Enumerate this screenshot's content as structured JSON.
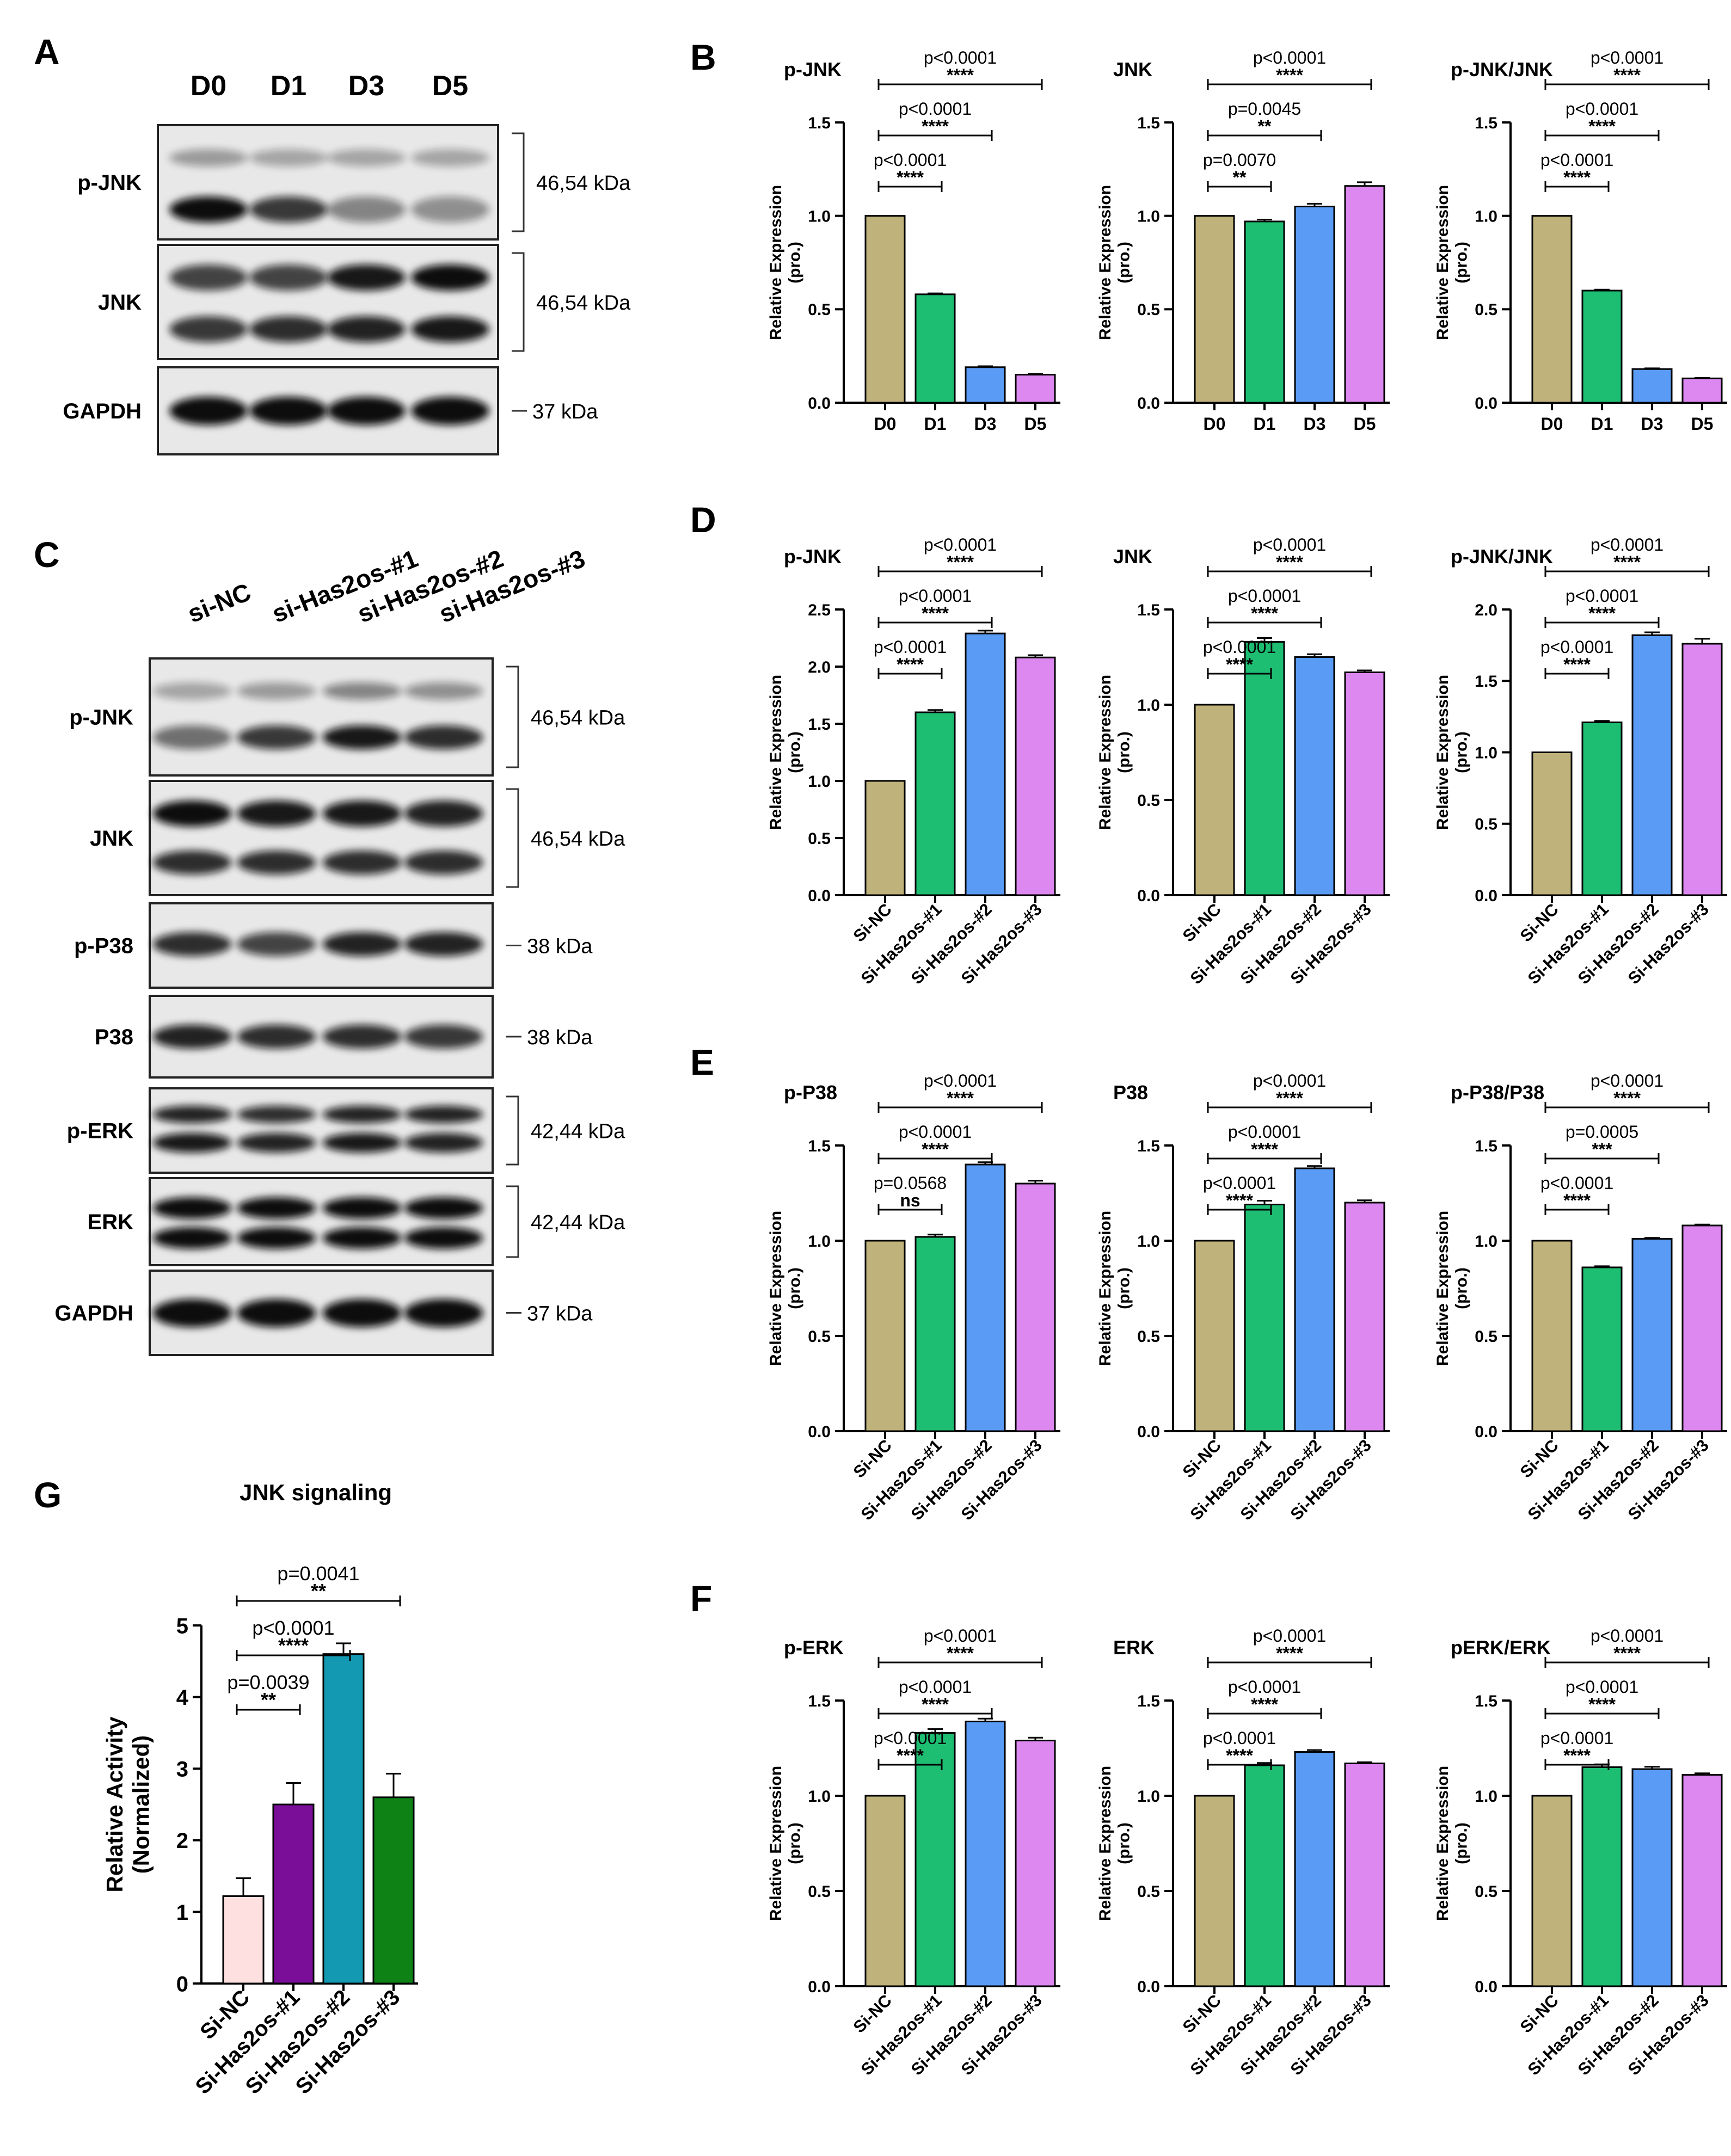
{
  "colors": {
    "d0": "#BFB27A",
    "d1": "#1EBE72",
    "d3": "#5A9BF5",
    "d5": "#DD88F0",
    "g_nc": "#FFE0E0",
    "g_1": "#7A0E98",
    "g_2": "#1499B2",
    "g_3": "#0E8214"
  },
  "panel_letters": {
    "a": "A",
    "b": "B",
    "c": "C",
    "d": "D",
    "e": "E",
    "f": "F",
    "g": "G"
  },
  "blot_a": {
    "lanes": [
      "D0",
      "D1",
      "D3",
      "D5"
    ],
    "rows": [
      {
        "label": "p-JNK",
        "size": "46,54 kDa"
      },
      {
        "label": "JNK",
        "size": "46,54 kDa"
      },
      {
        "label": "GAPDH",
        "size": "37 kDa"
      }
    ]
  },
  "blot_c": {
    "lanes": [
      "si-NC",
      "si-Has2os-#1",
      "si-Has2os-#2",
      "si-Has2os-#3"
    ],
    "rows": [
      {
        "label": "p-JNK",
        "size": "46,54 kDa"
      },
      {
        "label": "JNK",
        "size": "46,54 kDa"
      },
      {
        "label": "p-P38",
        "size": "38 kDa"
      },
      {
        "label": "P38",
        "size": "38 kDa"
      },
      {
        "label": "p-ERK",
        "size": "42,44 kDa"
      },
      {
        "label": "ERK",
        "size": "42,44 kDa"
      },
      {
        "label": "GAPDH",
        "size": "37 kDa"
      }
    ]
  },
  "chart_data": [
    {
      "panel": "B",
      "type": "bar",
      "title": "p-JNK",
      "ylabel": "Relative Expression\n(pro.)",
      "ylim": [
        0,
        1.5
      ],
      "yticks": [
        0,
        0.5,
        1.0,
        1.5
      ],
      "categories": [
        "D0",
        "D1",
        "D3",
        "D5"
      ],
      "values": [
        1.0,
        0.58,
        0.19,
        0.15
      ],
      "errors": [
        0,
        0.005,
        0.005,
        0.004
      ],
      "comparisons": [
        {
          "to": 1,
          "p": "p<0.0001",
          "stars": "****"
        },
        {
          "to": 2,
          "p": "p<0.0001",
          "stars": "****"
        },
        {
          "to": 3,
          "p": "p<0.0001",
          "stars": "****"
        }
      ]
    },
    {
      "panel": "B",
      "type": "bar",
      "title": "JNK",
      "ylabel": "Relative Expression\n(pro.)",
      "ylim": [
        0,
        1.5
      ],
      "yticks": [
        0,
        0.5,
        1.0,
        1.5
      ],
      "categories": [
        "D0",
        "D1",
        "D3",
        "D5"
      ],
      "values": [
        1.0,
        0.97,
        1.05,
        1.16
      ],
      "errors": [
        0,
        0.01,
        0.015,
        0.02
      ],
      "comparisons": [
        {
          "to": 1,
          "p": "p=0.0070",
          "stars": "**"
        },
        {
          "to": 2,
          "p": "p=0.0045",
          "stars": "**"
        },
        {
          "to": 3,
          "p": "p<0.0001",
          "stars": "****"
        }
      ]
    },
    {
      "panel": "B",
      "type": "bar",
      "title": "p-JNK/JNK",
      "ylabel": "Relative Expression\n(pro.)",
      "ylim": [
        0,
        1.5
      ],
      "yticks": [
        0,
        0.5,
        1.0,
        1.5
      ],
      "categories": [
        "D0",
        "D1",
        "D3",
        "D5"
      ],
      "values": [
        1.0,
        0.6,
        0.18,
        0.13
      ],
      "errors": [
        0,
        0.005,
        0.004,
        0.003
      ],
      "comparisons": [
        {
          "to": 1,
          "p": "p<0.0001",
          "stars": "****"
        },
        {
          "to": 2,
          "p": "p<0.0001",
          "stars": "****"
        },
        {
          "to": 3,
          "p": "p<0.0001",
          "stars": "****"
        }
      ]
    },
    {
      "panel": "D",
      "type": "bar",
      "title": "p-JNK",
      "ylabel": "Relative Expression\n(pro.)",
      "ylim": [
        0,
        2.5
      ],
      "yticks": [
        0,
        0.5,
        1.0,
        1.5,
        2.0,
        2.5
      ],
      "categories": [
        "Si-NC",
        "Si-Has2os-#1",
        "Si-Has2os-#2",
        "Si-Has2os-#3"
      ],
      "values": [
        1.0,
        1.6,
        2.29,
        2.08
      ],
      "errors": [
        0,
        0.02,
        0.025,
        0.02
      ],
      "comparisons": [
        {
          "to": 1,
          "p": "p<0.0001",
          "stars": "****"
        },
        {
          "to": 2,
          "p": "p<0.0001",
          "stars": "****"
        },
        {
          "to": 3,
          "p": "p<0.0001",
          "stars": "****"
        }
      ]
    },
    {
      "panel": "D",
      "type": "bar",
      "title": "JNK",
      "ylabel": "Relative Expression\n(pro.)",
      "ylim": [
        0,
        1.5
      ],
      "yticks": [
        0,
        0.5,
        1.0,
        1.5
      ],
      "categories": [
        "Si-NC",
        "Si-Has2os-#1",
        "Si-Has2os-#2",
        "Si-Has2os-#3"
      ],
      "values": [
        1.0,
        1.33,
        1.25,
        1.17
      ],
      "errors": [
        0,
        0.02,
        0.015,
        0.01
      ],
      "comparisons": [
        {
          "to": 1,
          "p": "p<0.0001",
          "stars": "****"
        },
        {
          "to": 2,
          "p": "p<0.0001",
          "stars": "****"
        },
        {
          "to": 3,
          "p": "p<0.0001",
          "stars": "****"
        }
      ]
    },
    {
      "panel": "D",
      "type": "bar",
      "title": "p-JNK/JNK",
      "ylabel": "Relative Expression\n(pro.)",
      "ylim": [
        0,
        2.0
      ],
      "yticks": [
        0,
        0.5,
        1.0,
        1.5,
        2.0
      ],
      "categories": [
        "Si-NC",
        "Si-Has2os-#1",
        "Si-Has2os-#2",
        "Si-Has2os-#3"
      ],
      "values": [
        1.0,
        1.21,
        1.82,
        1.76
      ],
      "errors": [
        0,
        0.01,
        0.02,
        0.035
      ],
      "comparisons": [
        {
          "to": 1,
          "p": "p<0.0001",
          "stars": "****"
        },
        {
          "to": 2,
          "p": "p<0.0001",
          "stars": "****"
        },
        {
          "to": 3,
          "p": "p<0.0001",
          "stars": "****"
        }
      ]
    },
    {
      "panel": "E",
      "type": "bar",
      "title": "p-P38",
      "ylabel": "Relative Expression\n(pro.)",
      "ylim": [
        0,
        1.5
      ],
      "yticks": [
        0,
        0.5,
        1.0,
        1.5
      ],
      "categories": [
        "Si-NC",
        "Si-Has2os-#1",
        "Si-Has2os-#2",
        "Si-Has2os-#3"
      ],
      "values": [
        1.0,
        1.02,
        1.4,
        1.3
      ],
      "errors": [
        0,
        0.012,
        0.012,
        0.015
      ],
      "comparisons": [
        {
          "to": 1,
          "p": "p=0.0568",
          "stars": "ns"
        },
        {
          "to": 2,
          "p": "p<0.0001",
          "stars": "****"
        },
        {
          "to": 3,
          "p": "p<0.0001",
          "stars": "****"
        }
      ]
    },
    {
      "panel": "E",
      "type": "bar",
      "title": "P38",
      "ylabel": "Relative Expression\n(pro.)",
      "ylim": [
        0,
        1.5
      ],
      "yticks": [
        0,
        0.5,
        1.0,
        1.5
      ],
      "categories": [
        "Si-NC",
        "Si-Has2os-#1",
        "Si-Has2os-#2",
        "Si-Has2os-#3"
      ],
      "values": [
        1.0,
        1.19,
        1.38,
        1.2
      ],
      "errors": [
        0,
        0.02,
        0.012,
        0.012
      ],
      "comparisons": [
        {
          "to": 1,
          "p": "p<0.0001",
          "stars": "****"
        },
        {
          "to": 2,
          "p": "p<0.0001",
          "stars": "****"
        },
        {
          "to": 3,
          "p": "p<0.0001",
          "stars": "****"
        }
      ]
    },
    {
      "panel": "E",
      "type": "bar",
      "title": "p-P38/P38",
      "ylabel": "Relative Expression\n(pro.)",
      "ylim": [
        0,
        1.5
      ],
      "yticks": [
        0,
        0.5,
        1.0,
        1.5
      ],
      "categories": [
        "Si-NC",
        "Si-Has2os-#1",
        "Si-Has2os-#2",
        "Si-Has2os-#3"
      ],
      "values": [
        1.0,
        0.86,
        1.01,
        1.08
      ],
      "errors": [
        0,
        0.006,
        0.005,
        0.005
      ],
      "comparisons": [
        {
          "to": 1,
          "p": "p<0.0001",
          "stars": "****"
        },
        {
          "to": 2,
          "p": "p=0.0005",
          "stars": "***"
        },
        {
          "to": 3,
          "p": "p<0.0001",
          "stars": "****"
        }
      ]
    },
    {
      "panel": "F",
      "type": "bar",
      "title": "p-ERK",
      "ylabel": "Relative Expression\n(pro.)",
      "ylim": [
        0,
        1.5
      ],
      "yticks": [
        0,
        0.5,
        1.0,
        1.5
      ],
      "categories": [
        "Si-NC",
        "Si-Has2os-#1",
        "Si-Has2os-#2",
        "Si-Has2os-#3"
      ],
      "values": [
        1.0,
        1.33,
        1.39,
        1.29
      ],
      "errors": [
        0,
        0.02,
        0.015,
        0.015
      ],
      "comparisons": [
        {
          "to": 1,
          "p": "p<0.0001",
          "stars": "****"
        },
        {
          "to": 2,
          "p": "p<0.0001",
          "stars": "****"
        },
        {
          "to": 3,
          "p": "p<0.0001",
          "stars": "****"
        }
      ]
    },
    {
      "panel": "F",
      "type": "bar",
      "title": "ERK",
      "ylabel": "Relative Expression\n(pro.)",
      "ylim": [
        0,
        1.5
      ],
      "yticks": [
        0,
        0.5,
        1.0,
        1.5
      ],
      "categories": [
        "Si-NC",
        "Si-Has2os-#1",
        "Si-Has2os-#2",
        "Si-Has2os-#3"
      ],
      "values": [
        1.0,
        1.16,
        1.23,
        1.17
      ],
      "errors": [
        0,
        0.012,
        0.01,
        0.006
      ],
      "comparisons": [
        {
          "to": 1,
          "p": "p<0.0001",
          "stars": "****"
        },
        {
          "to": 2,
          "p": "p<0.0001",
          "stars": "****"
        },
        {
          "to": 3,
          "p": "p<0.0001",
          "stars": "****"
        }
      ]
    },
    {
      "panel": "F",
      "type": "bar",
      "title": "pERK/ERK",
      "ylabel": "Relative Expression\n(pro.)",
      "ylim": [
        0,
        1.5
      ],
      "yticks": [
        0,
        0.5,
        1.0,
        1.5
      ],
      "categories": [
        "Si-NC",
        "Si-Has2os-#1",
        "Si-Has2os-#2",
        "Si-Has2os-#3"
      ],
      "values": [
        1.0,
        1.15,
        1.14,
        1.11
      ],
      "errors": [
        0,
        0.015,
        0.012,
        0.008
      ],
      "comparisons": [
        {
          "to": 1,
          "p": "p<0.0001",
          "stars": "****"
        },
        {
          "to": 2,
          "p": "p<0.0001",
          "stars": "****"
        },
        {
          "to": 3,
          "p": "p<0.0001",
          "stars": "****"
        }
      ]
    },
    {
      "panel": "G",
      "type": "bar",
      "title": "JNK signaling",
      "ylabel": "Relative Activity\n(Normalized)",
      "ylim": [
        0,
        5
      ],
      "yticks": [
        0,
        1,
        2,
        3,
        4,
        5
      ],
      "categories": [
        "Si-NC",
        "Si-Has2os-#1",
        "Si-Has2os-#2",
        "Si-Has2os-#3"
      ],
      "values": [
        1.22,
        2.5,
        4.6,
        2.6
      ],
      "errors": [
        0.25,
        0.3,
        0.15,
        0.33
      ],
      "comparisons": [
        {
          "to": 1,
          "p": "p=0.0039",
          "stars": "**"
        },
        {
          "to": 2,
          "p": "p<0.0001",
          "stars": "****"
        },
        {
          "to": 3,
          "p": "p=0.0041",
          "stars": "**"
        }
      ]
    }
  ]
}
